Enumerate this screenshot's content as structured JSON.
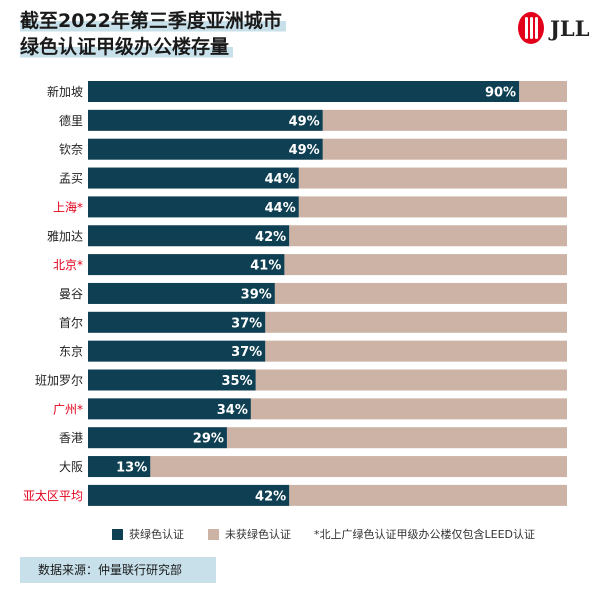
{
  "header": {
    "title_line1": "截至2022年第三季度亚洲城市",
    "title_line2": "绿色认证甲级办公楼存量"
  },
  "logo": {
    "text": "JLL",
    "color": "#e3001b"
  },
  "colors": {
    "certified": "#0e3f52",
    "uncertified": "#cdb3a6",
    "label_default": "#222222",
    "label_highlight": "#e3001b"
  },
  "chart_data": {
    "type": "bar",
    "orientation": "horizontal",
    "stacked": true,
    "percent_of_total": true,
    "categories": [
      "新加坡",
      "德里",
      "钦奈",
      "孟买",
      "上海*",
      "雅加达",
      "北京*",
      "曼谷",
      "首尔",
      "东京",
      "班加罗尔",
      "广州*",
      "香港",
      "大阪",
      "亚太区平均"
    ],
    "highlighted_categories": [
      "上海*",
      "北京*",
      "广州*",
      "亚太区平均"
    ],
    "series": [
      {
        "name": "获绿色认证",
        "values": [
          90,
          49,
          49,
          44,
          44,
          42,
          41,
          39,
          37,
          37,
          35,
          34,
          29,
          13,
          42
        ]
      },
      {
        "name": "未获绿色认证",
        "values": [
          10,
          51,
          51,
          56,
          56,
          58,
          59,
          61,
          63,
          63,
          65,
          66,
          71,
          87,
          58
        ]
      }
    ],
    "data_labels": [
      "90%",
      "49%",
      "49%",
      "44%",
      "44%",
      "42%",
      "41%",
      "39%",
      "37%",
      "37%",
      "35%",
      "34%",
      "29%",
      "13%",
      "42%"
    ],
    "xlim": [
      0,
      100
    ],
    "grid": false,
    "legend_position": "bottom"
  },
  "legend": {
    "certified": "获绿色认证",
    "uncertified": "未获绿色认证",
    "note": "*北上广绿色认证甲级办公楼仅包含LEED认证"
  },
  "source": "数据来源：仲量联行研究部"
}
